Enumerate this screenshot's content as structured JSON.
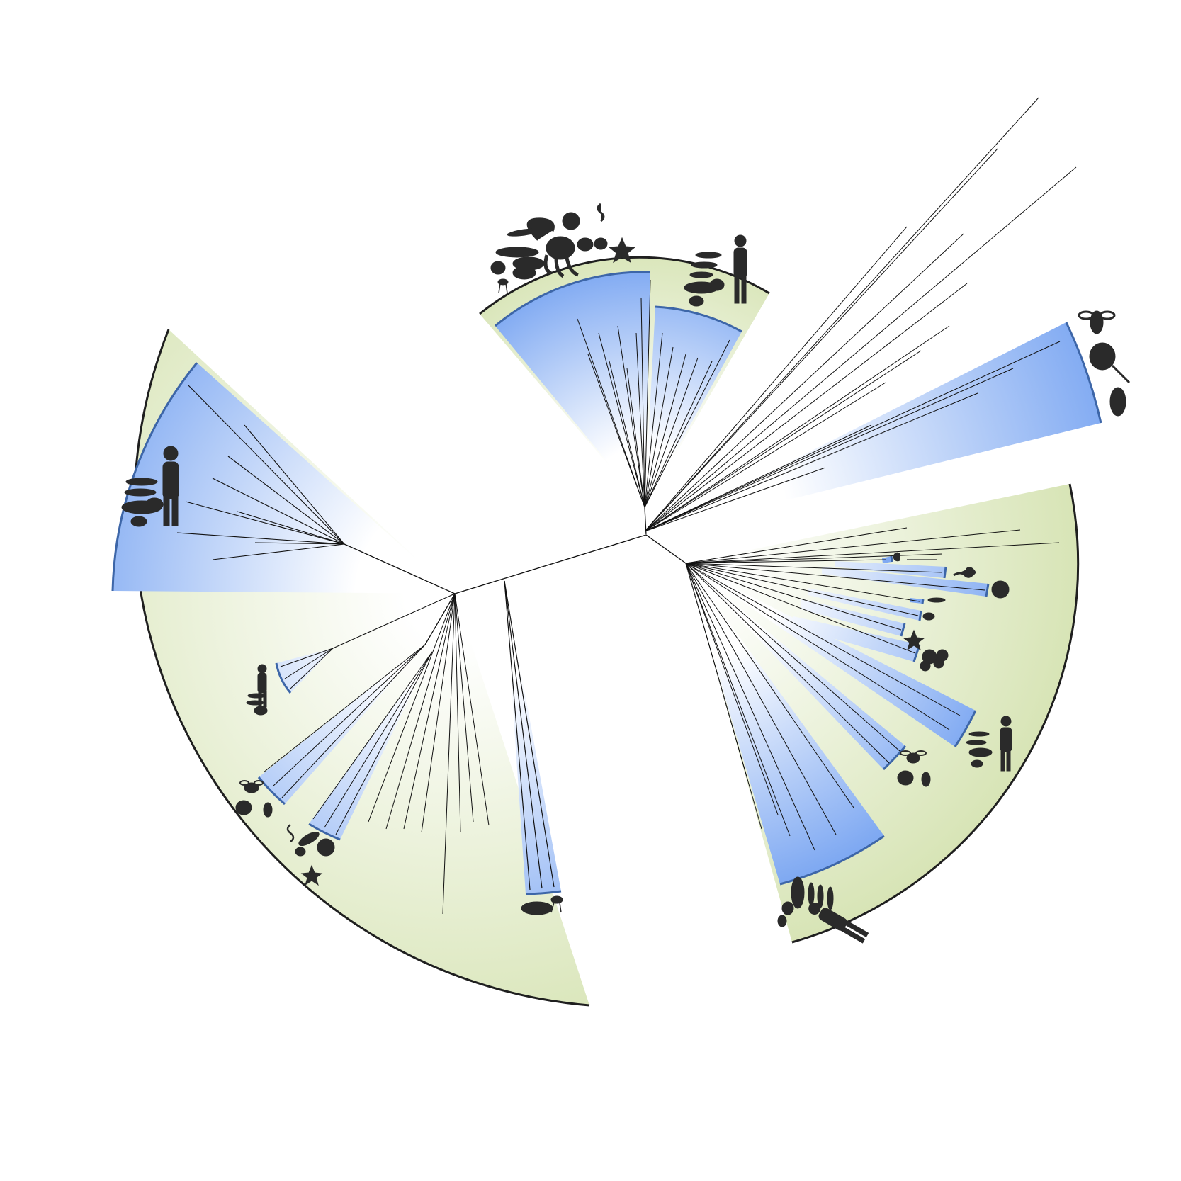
{
  "figure": {
    "type": "unrooted-phylogenetic-tree",
    "colors": {
      "background": "#ffffff",
      "outer_clade_fill": "#d7e4b5",
      "inner_clade_fill": "#7fa9f2",
      "branch": "#111111",
      "silhouette": "#2a2a2a",
      "outer_rim": "#1f1f1f",
      "inner_rim": "#3d66a8"
    },
    "clade_groups": [
      {
        "id": "left-clade",
        "subclades": [
          "vertebrates-large",
          "vertebrates-small",
          "arthropods-left",
          "mixed-invertebrates-left",
          "basal-left"
        ]
      },
      {
        "id": "top-clade",
        "subclades": [
          "invertebrates-top",
          "vertebrates-top"
        ]
      },
      {
        "id": "arthropod-clade-right",
        "subclades": [
          "arthropods-right"
        ]
      },
      {
        "id": "right-clade",
        "subclades": [
          "small-wedges-right",
          "vertebrates-right-mid",
          "arthropods-right-mid",
          "vertebrates-bottom-right"
        ]
      }
    ],
    "silhouette_icons": [
      "human-icon",
      "fish-icon",
      "coelacanth-icon",
      "frog-icon",
      "mouse-icon",
      "bee-icon",
      "horseshoe-crab-icon",
      "crustacean-icon",
      "worm-icon",
      "sea-urchin-icon",
      "starfish-icon",
      "octopus-icon",
      "sponge-icon",
      "jellyfish-icon",
      "snail-icon",
      "tunicate-icon"
    ]
  }
}
